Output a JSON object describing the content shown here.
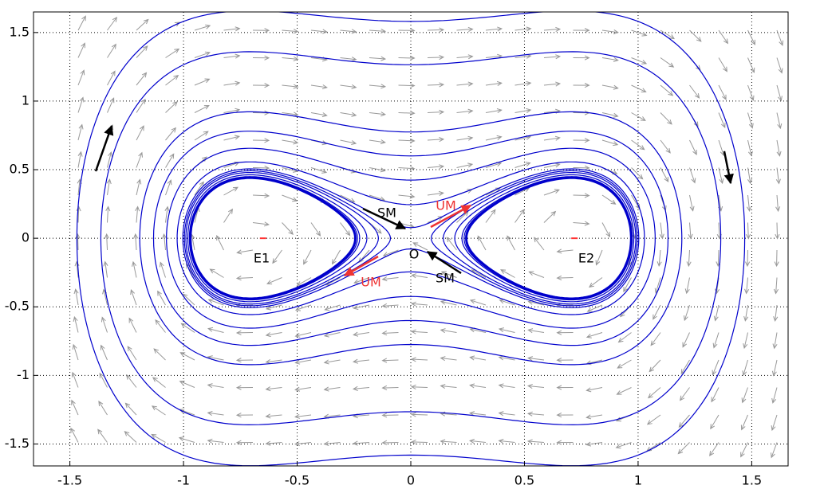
{
  "chart_data": {
    "type": "phase-portrait",
    "xlim": [
      -1.66,
      1.66
    ],
    "ylim": [
      -1.66,
      1.65
    ],
    "xticks": [
      -1.5,
      -1,
      -0.5,
      0,
      0.5,
      1,
      1.5
    ],
    "yticks": [
      -1.5,
      -1,
      -0.5,
      0,
      0.5,
      1,
      1.5
    ],
    "grid": true,
    "orbit_color": "#0000cc",
    "orbit_levels": [
      -0.028,
      -0.026,
      -0.024,
      -0.018,
      -0.01,
      -0.004,
      0.003,
      0.03,
      0.09,
      0.18,
      0.3,
      0.8,
      1.25
    ],
    "equilibria": {
      "x": [
        -0.65,
        0.72
      ],
      "y": [
        0,
        0
      ],
      "color": "#ff3333"
    },
    "annotations": [
      {
        "text": "SM",
        "color": "#000000"
      },
      {
        "text": "UM",
        "color": "#ee3333"
      },
      {
        "text": "O",
        "color": "#000000"
      },
      {
        "text": "SM",
        "color": "#000000"
      },
      {
        "text": "UM",
        "color": "#ee3333"
      },
      {
        "text": "E1",
        "color": "#000000"
      },
      {
        "text": "E2",
        "color": "#000000"
      }
    ]
  }
}
